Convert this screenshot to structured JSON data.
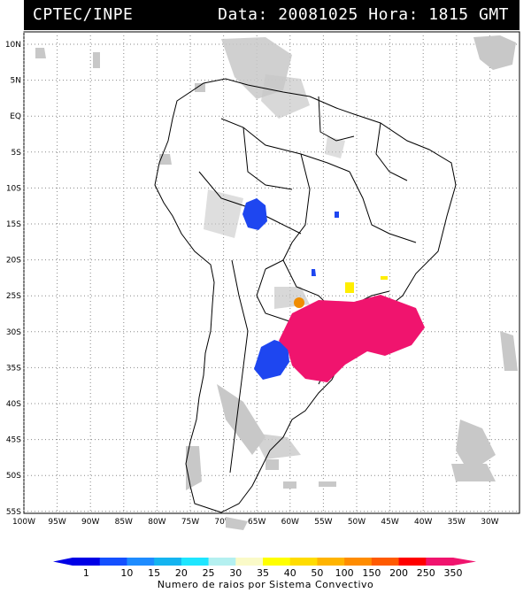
{
  "header": {
    "agency": "CPTEC/INPE",
    "date_label": "Data:",
    "date_value": "20081025",
    "time_label": "Hora:",
    "time_value": "1815",
    "tz": "GMT"
  },
  "map": {
    "lat_labels": [
      "10N",
      "5N",
      "EQ",
      "5S",
      "10S",
      "15S",
      "20S",
      "25S",
      "30S",
      "35S",
      "40S",
      "45S",
      "50S",
      "55S"
    ],
    "lon_labels": [
      "100W",
      "95W",
      "90W",
      "85W",
      "80W",
      "75W",
      "70W",
      "65W",
      "60W",
      "55W",
      "50W",
      "45W",
      "40W",
      "35W",
      "30W"
    ],
    "colors": {
      "cloud": "#c8c8c8",
      "blue": "#1e46f0",
      "yellow": "#ffee00",
      "orange": "#f08c00",
      "magenta": "#f0146e"
    }
  },
  "colorbar": {
    "labels": [
      "1",
      "10",
      "15",
      "20",
      "25",
      "30",
      "35",
      "40",
      "50",
      "100",
      "150",
      "200",
      "250",
      "350"
    ],
    "colors": [
      "#0000e6",
      "#1450ff",
      "#1e8cff",
      "#14b4f0",
      "#1ee6ff",
      "#b4f0f0",
      "#fafac8",
      "#ffff00",
      "#ffdc00",
      "#ffb400",
      "#ff8c00",
      "#ff5a00",
      "#ff0000",
      "#f0146e"
    ],
    "caption": "Numero de raios por Sistema Convectivo"
  }
}
